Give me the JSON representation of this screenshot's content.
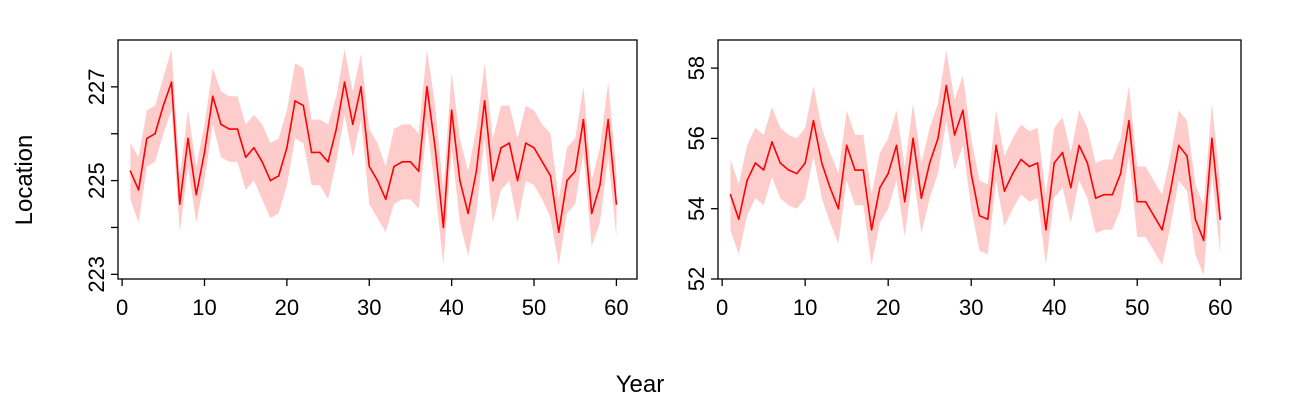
{
  "figure": {
    "xlabel": "Year",
    "ylabel": "Location"
  },
  "chart_data": [
    {
      "type": "line",
      "panel": "left",
      "x": [
        1,
        2,
        3,
        4,
        5,
        6,
        7,
        8,
        9,
        10,
        11,
        12,
        13,
        14,
        15,
        16,
        17,
        18,
        19,
        20,
        21,
        22,
        23,
        24,
        25,
        26,
        27,
        28,
        29,
        30,
        31,
        32,
        33,
        34,
        35,
        36,
        37,
        38,
        39,
        40,
        41,
        42,
        43,
        44,
        45,
        46,
        47,
        48,
        49,
        50,
        51,
        52,
        53,
        54,
        55,
        56,
        57,
        58,
        59,
        60
      ],
      "series": [
        {
          "color": "#ff0000",
          "band_color": "#ffcccc",
          "values": [
            225.2,
            224.8,
            225.9,
            226.0,
            226.6,
            227.1,
            224.5,
            225.9,
            224.7,
            225.6,
            226.8,
            226.2,
            226.1,
            226.1,
            225.5,
            225.7,
            225.4,
            225.0,
            225.1,
            225.7,
            226.7,
            226.6,
            225.6,
            225.6,
            225.4,
            226.1,
            227.1,
            226.2,
            227.0,
            225.3,
            225.0,
            224.6,
            225.3,
            225.4,
            225.4,
            225.2,
            227.0,
            225.7,
            224.0,
            226.5,
            225.0,
            224.3,
            225.2,
            226.7,
            225.0,
            225.7,
            225.8,
            225.0,
            225.8,
            225.7,
            225.4,
            225.1,
            223.9,
            225.0,
            225.2,
            226.3,
            224.3,
            224.9,
            226.3,
            224.5
          ],
          "lower": [
            224.6,
            224.1,
            225.3,
            225.4,
            226.0,
            226.5,
            223.9,
            225.3,
            224.1,
            225.0,
            226.2,
            225.5,
            225.4,
            225.4,
            224.8,
            225.0,
            224.6,
            224.2,
            224.3,
            224.9,
            225.9,
            225.8,
            224.9,
            224.9,
            224.6,
            225.4,
            226.4,
            225.5,
            226.3,
            224.5,
            224.2,
            223.9,
            224.5,
            224.6,
            224.6,
            224.4,
            226.2,
            224.8,
            223.2,
            225.7,
            224.1,
            223.4,
            224.3,
            225.9,
            224.1,
            224.8,
            225.0,
            224.1,
            225.0,
            224.9,
            224.6,
            224.2,
            223.2,
            224.3,
            224.5,
            225.6,
            223.6,
            224.1,
            225.5,
            223.8
          ],
          "upper": [
            225.8,
            225.5,
            226.5,
            226.6,
            227.2,
            227.8,
            225.1,
            226.5,
            225.3,
            226.2,
            227.4,
            226.9,
            226.8,
            226.8,
            226.2,
            226.4,
            226.2,
            225.8,
            225.9,
            226.5,
            227.5,
            227.4,
            226.3,
            226.3,
            226.2,
            226.8,
            227.8,
            226.9,
            227.7,
            226.1,
            225.8,
            225.3,
            226.1,
            226.2,
            226.2,
            226.0,
            227.8,
            226.6,
            224.8,
            227.3,
            225.9,
            225.2,
            226.1,
            227.5,
            225.9,
            226.6,
            226.6,
            225.9,
            226.6,
            226.5,
            226.2,
            226.0,
            224.6,
            225.7,
            225.9,
            227.0,
            225.0,
            225.7,
            227.1,
            225.2
          ]
        }
      ],
      "xlim": [
        -0.5,
        62.5
      ],
      "ylim": [
        222.9,
        228.0
      ],
      "xticks": [
        0,
        10,
        20,
        30,
        40,
        50,
        60
      ],
      "xtick_labels": [
        "0",
        "10",
        "20",
        "30",
        "40",
        "50",
        "60"
      ],
      "yticks": [
        223,
        224,
        225,
        226,
        227
      ],
      "ytick_labels": [
        "223",
        "",
        "225",
        "",
        "227"
      ],
      "grid": false
    },
    {
      "type": "line",
      "panel": "right",
      "x": [
        1,
        2,
        3,
        4,
        5,
        6,
        7,
        8,
        9,
        10,
        11,
        12,
        13,
        14,
        15,
        16,
        17,
        18,
        19,
        20,
        21,
        22,
        23,
        24,
        25,
        26,
        27,
        28,
        29,
        30,
        31,
        32,
        33,
        34,
        35,
        36,
        37,
        38,
        39,
        40,
        41,
        42,
        43,
        44,
        45,
        46,
        47,
        48,
        49,
        50,
        51,
        52,
        53,
        54,
        55,
        56,
        57,
        58,
        59,
        60
      ],
      "series": [
        {
          "color": "#ff0000",
          "band_color": "#ffcccc",
          "values": [
            54.4,
            53.7,
            54.8,
            55.3,
            55.1,
            55.9,
            55.3,
            55.1,
            55.0,
            55.3,
            56.5,
            55.3,
            54.6,
            54.0,
            55.8,
            55.1,
            55.1,
            53.4,
            54.6,
            55.0,
            55.8,
            54.2,
            56.0,
            54.3,
            55.3,
            56.0,
            57.5,
            56.1,
            56.8,
            55.0,
            53.8,
            53.7,
            55.8,
            54.5,
            55.0,
            55.4,
            55.2,
            55.3,
            53.4,
            55.3,
            55.6,
            54.6,
            55.8,
            55.3,
            54.3,
            54.4,
            54.4,
            55.0,
            56.5,
            54.2,
            54.2,
            53.8,
            53.4,
            54.5,
            55.8,
            55.5,
            53.7,
            53.1,
            56.0,
            53.7
          ],
          "lower": [
            53.4,
            52.7,
            53.8,
            54.3,
            54.1,
            54.9,
            54.3,
            54.1,
            54.0,
            54.3,
            55.5,
            54.3,
            53.6,
            53.0,
            54.8,
            54.1,
            54.1,
            52.4,
            53.6,
            54.0,
            54.8,
            53.2,
            55.0,
            53.3,
            54.3,
            55.0,
            56.5,
            55.1,
            55.8,
            54.0,
            52.8,
            52.7,
            54.8,
            53.5,
            54.0,
            54.4,
            54.2,
            54.3,
            52.4,
            54.3,
            54.6,
            53.6,
            54.8,
            54.3,
            53.3,
            53.4,
            53.4,
            54.0,
            55.5,
            53.2,
            53.2,
            52.8,
            52.4,
            53.5,
            54.8,
            54.5,
            52.7,
            52.1,
            55.0,
            52.7
          ],
          "upper": [
            55.4,
            54.7,
            55.8,
            56.3,
            56.1,
            56.9,
            56.3,
            56.1,
            56.0,
            56.3,
            57.5,
            56.3,
            55.6,
            55.0,
            56.8,
            56.1,
            56.1,
            54.4,
            55.6,
            56.0,
            56.8,
            55.2,
            57.0,
            55.3,
            56.3,
            57.0,
            58.5,
            57.1,
            57.8,
            56.0,
            54.8,
            54.7,
            56.8,
            55.5,
            56.0,
            56.4,
            56.2,
            56.3,
            54.4,
            56.3,
            56.6,
            55.6,
            56.8,
            56.3,
            55.3,
            55.4,
            55.4,
            56.0,
            57.5,
            55.2,
            55.2,
            54.8,
            54.4,
            55.5,
            56.8,
            56.5,
            54.7,
            54.1,
            57.0,
            54.7
          ]
        }
      ],
      "xlim": [
        -0.5,
        62.5
      ],
      "ylim": [
        52.0,
        58.8
      ],
      "xticks": [
        0,
        10,
        20,
        30,
        40,
        50,
        60
      ],
      "xtick_labels": [
        "0",
        "10",
        "20",
        "30",
        "40",
        "50",
        "60"
      ],
      "yticks": [
        52,
        54,
        56,
        58
      ],
      "ytick_labels": [
        "52",
        "54",
        "56",
        "58"
      ],
      "grid": false
    }
  ]
}
